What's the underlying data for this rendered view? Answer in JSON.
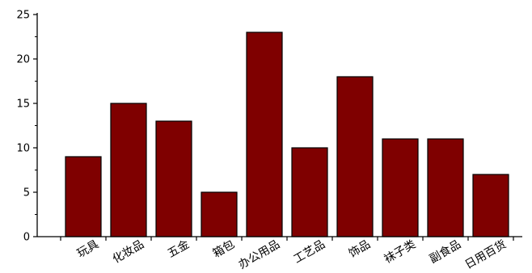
{
  "chart_data": {
    "type": "bar",
    "categories": [
      "玩具",
      "化妆品",
      "五金",
      "箱包",
      "办公用品",
      "工艺品",
      "饰品",
      "袜子类",
      "副食品",
      "日用百货"
    ],
    "values": [
      9,
      15,
      13,
      5,
      23,
      10,
      18,
      11,
      11,
      7
    ],
    "title": "",
    "xlabel": "",
    "ylabel": "",
    "ylim": [
      0,
      25
    ],
    "yticks": [
      "0",
      "5",
      "10",
      "15",
      "20",
      "25"
    ],
    "grid": false,
    "bar_color": "#7f0000"
  }
}
